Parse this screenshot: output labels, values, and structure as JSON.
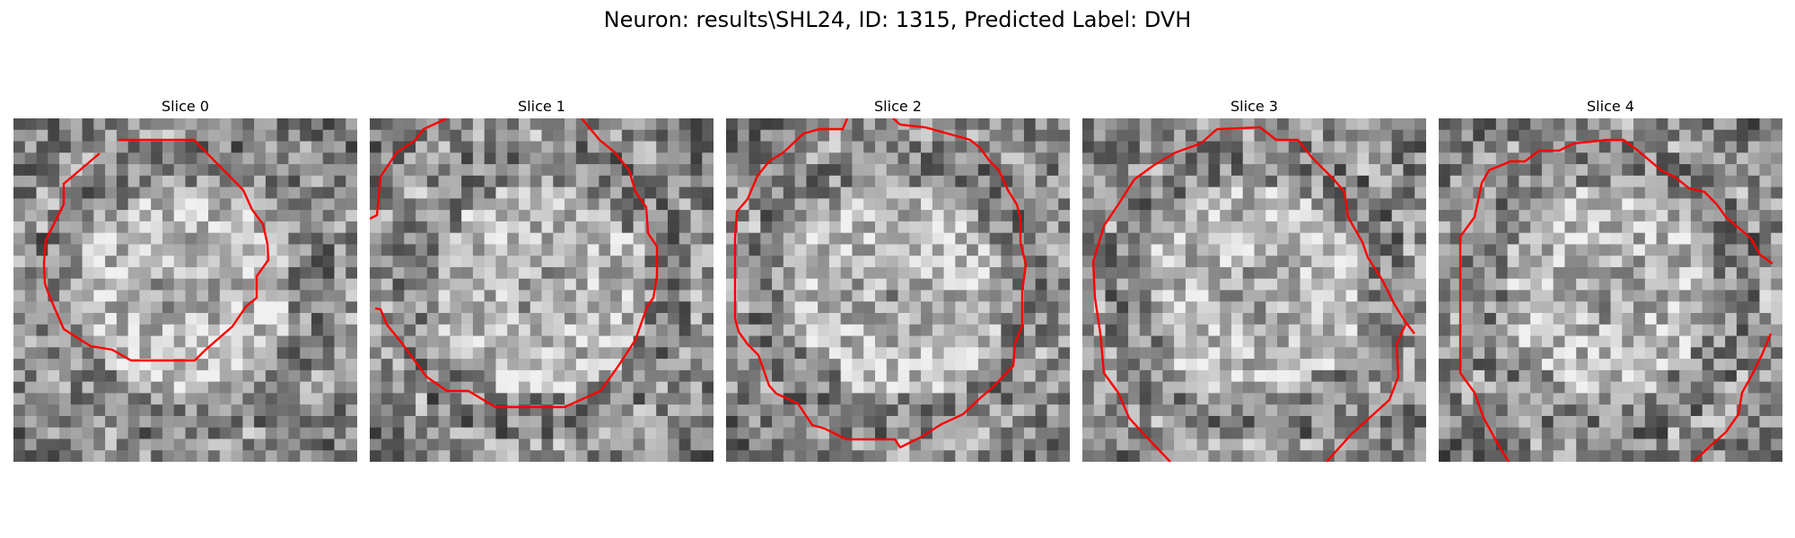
{
  "figure": {
    "title": "Neuron: results\\SHL24, ID: 1315, Predicted Label: DVH"
  },
  "panels": [
    {
      "title": "Slice 0",
      "seed": 11,
      "contour_color": "#ff0000"
    },
    {
      "title": "Slice 1",
      "seed": 23,
      "contour_color": "#ff0000"
    },
    {
      "title": "Slice 2",
      "seed": 37,
      "contour_color": "#ff0000"
    },
    {
      "title": "Slice 3",
      "seed": 51,
      "contour_color": "#ff0000"
    },
    {
      "title": "Slice 4",
      "seed": 67,
      "contour_color": "#ff0000"
    }
  ],
  "colormap": "gray",
  "grid_size": 30
}
